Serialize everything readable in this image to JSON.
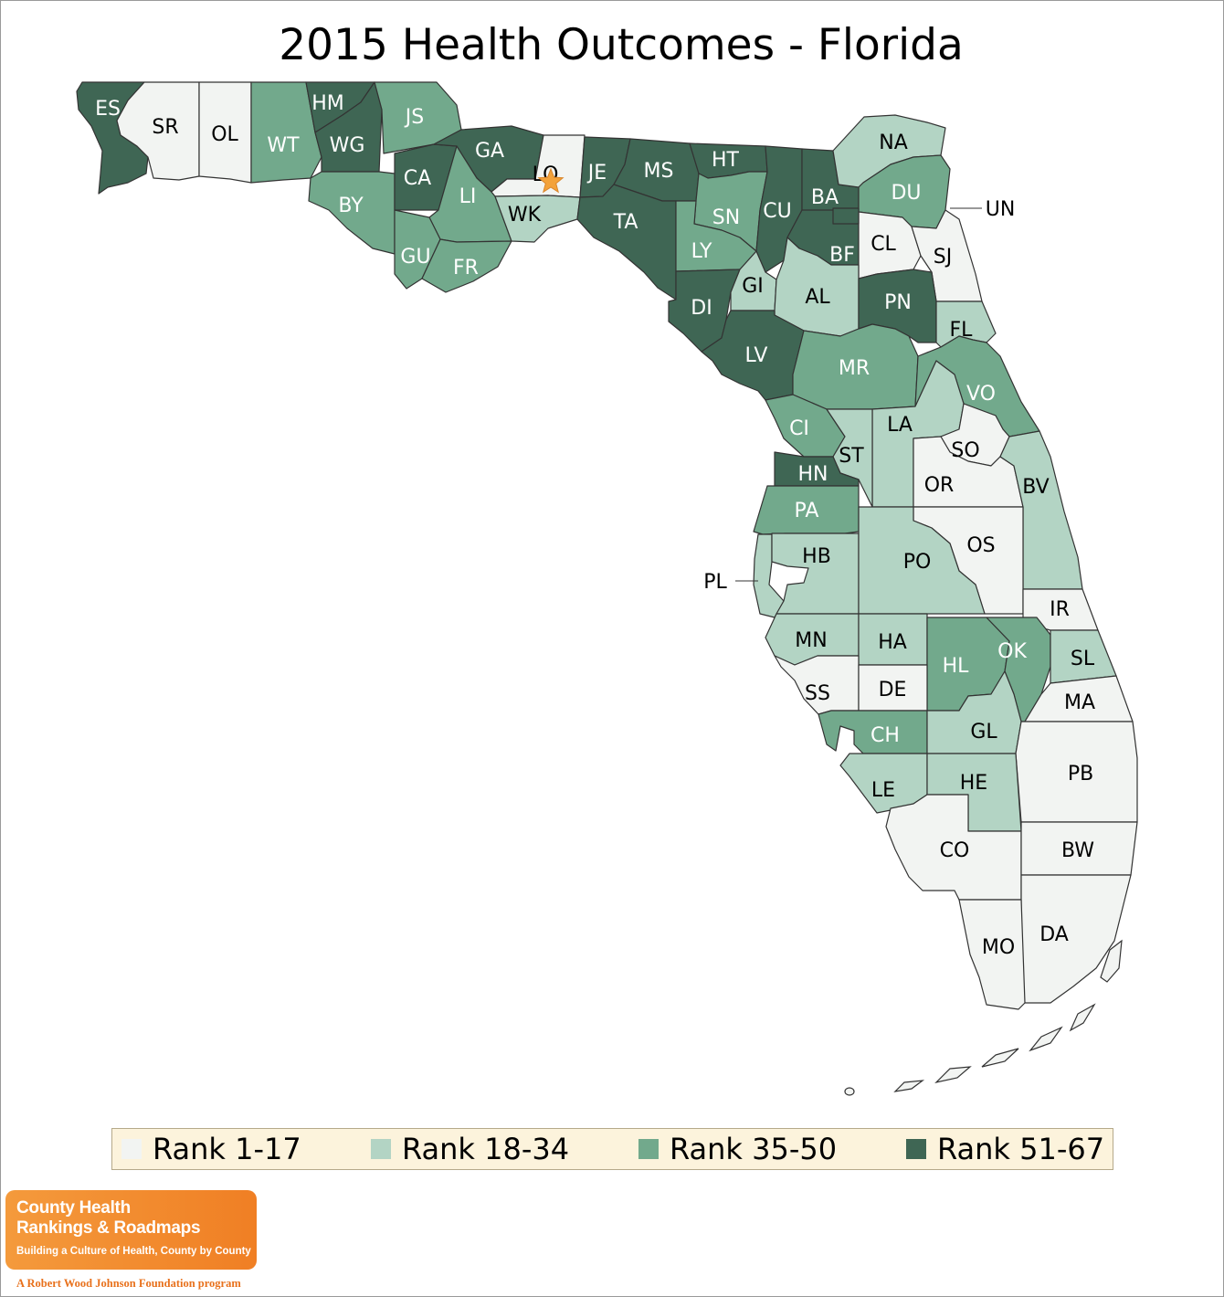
{
  "title": "2015 Health Outcomes - Florida",
  "legend": [
    {
      "label": "Rank 1-17",
      "color": "#f2f4f2"
    },
    {
      "label": "Rank 18-34",
      "color": "#b3d4c4"
    },
    {
      "label": "Rank 35-50",
      "color": "#72a98c"
    },
    {
      "label": "Rank 51-67",
      "color": "#3f6654"
    }
  ],
  "counties": [
    {
      "abbr": "ES",
      "rank_group": 3
    },
    {
      "abbr": "SR",
      "rank_group": 0
    },
    {
      "abbr": "OL",
      "rank_group": 0
    },
    {
      "abbr": "WT",
      "rank_group": 2
    },
    {
      "abbr": "HM",
      "rank_group": 3
    },
    {
      "abbr": "WG",
      "rank_group": 3
    },
    {
      "abbr": "JS",
      "rank_group": 2
    },
    {
      "abbr": "BY",
      "rank_group": 2
    },
    {
      "abbr": "CA",
      "rank_group": 3
    },
    {
      "abbr": "GA",
      "rank_group": 3
    },
    {
      "abbr": "LI",
      "rank_group": 2
    },
    {
      "abbr": "GU",
      "rank_group": 2
    },
    {
      "abbr": "FR",
      "rank_group": 2
    },
    {
      "abbr": "LO",
      "rank_group": 0
    },
    {
      "abbr": "WK",
      "rank_group": 1
    },
    {
      "abbr": "JE",
      "rank_group": 3
    },
    {
      "abbr": "MS",
      "rank_group": 3
    },
    {
      "abbr": "TA",
      "rank_group": 3
    },
    {
      "abbr": "HT",
      "rank_group": 3
    },
    {
      "abbr": "SN",
      "rank_group": 2
    },
    {
      "abbr": "LY",
      "rank_group": 2
    },
    {
      "abbr": "CU",
      "rank_group": 3
    },
    {
      "abbr": "BA",
      "rank_group": 3
    },
    {
      "abbr": "BF",
      "rank_group": 3
    },
    {
      "abbr": "NA",
      "rank_group": 1
    },
    {
      "abbr": "DU",
      "rank_group": 2
    },
    {
      "abbr": "UN",
      "rank_group": 3
    },
    {
      "abbr": "CL",
      "rank_group": 0
    },
    {
      "abbr": "SJ",
      "rank_group": 0
    },
    {
      "abbr": "DI",
      "rank_group": 3
    },
    {
      "abbr": "GI",
      "rank_group": 1
    },
    {
      "abbr": "AL",
      "rank_group": 1
    },
    {
      "abbr": "PN",
      "rank_group": 3
    },
    {
      "abbr": "FL",
      "rank_group": 1
    },
    {
      "abbr": "LV",
      "rank_group": 3
    },
    {
      "abbr": "MR",
      "rank_group": 2
    },
    {
      "abbr": "VO",
      "rank_group": 2
    },
    {
      "abbr": "CI",
      "rank_group": 2
    },
    {
      "abbr": "LA",
      "rank_group": 1
    },
    {
      "abbr": "ST",
      "rank_group": 1
    },
    {
      "abbr": "SO",
      "rank_group": 0
    },
    {
      "abbr": "HN",
      "rank_group": 3
    },
    {
      "abbr": "OR",
      "rank_group": 0
    },
    {
      "abbr": "BV",
      "rank_group": 1
    },
    {
      "abbr": "PA",
      "rank_group": 2
    },
    {
      "abbr": "OS",
      "rank_group": 0
    },
    {
      "abbr": "PL",
      "rank_group": 1
    },
    {
      "abbr": "HB",
      "rank_group": 1
    },
    {
      "abbr": "PO",
      "rank_group": 1
    },
    {
      "abbr": "IR",
      "rank_group": 0
    },
    {
      "abbr": "MN",
      "rank_group": 1
    },
    {
      "abbr": "HA",
      "rank_group": 1
    },
    {
      "abbr": "HL",
      "rank_group": 2
    },
    {
      "abbr": "OK",
      "rank_group": 2
    },
    {
      "abbr": "SL",
      "rank_group": 1
    },
    {
      "abbr": "SS",
      "rank_group": 0
    },
    {
      "abbr": "DE",
      "rank_group": 0
    },
    {
      "abbr": "MA",
      "rank_group": 0
    },
    {
      "abbr": "CH",
      "rank_group": 2
    },
    {
      "abbr": "GL",
      "rank_group": 1
    },
    {
      "abbr": "PB",
      "rank_group": 0
    },
    {
      "abbr": "LE",
      "rank_group": 1
    },
    {
      "abbr": "HE",
      "rank_group": 1
    },
    {
      "abbr": "CO",
      "rank_group": 0
    },
    {
      "abbr": "BW",
      "rank_group": 0
    },
    {
      "abbr": "DA",
      "rank_group": 0
    },
    {
      "abbr": "MO",
      "rank_group": 0
    }
  ],
  "capital_marker": "star-icon",
  "logo": {
    "line1": "County Health",
    "line2": "Rankings & Roadmaps",
    "tagline": "Building a Culture of Health, County by County"
  },
  "footer": "A Robert Wood Johnson Foundation program"
}
